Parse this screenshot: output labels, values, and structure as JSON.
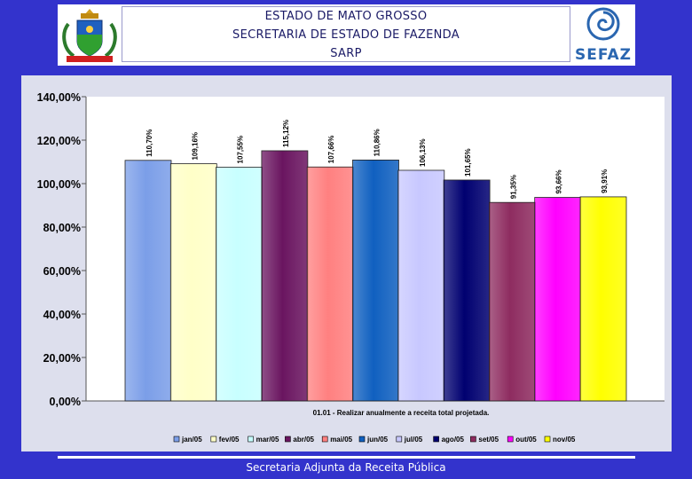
{
  "header": {
    "lines": [
      "ESTADO DE MATO GROSSO",
      "SECRETARIA DE ESTADO DE FAZENDA",
      "SARP"
    ],
    "logo_right_text": "SEFAZ"
  },
  "chart_data": {
    "type": "bar",
    "categories": [
      "jan/05",
      "fev/05",
      "mar/05",
      "abr/05",
      "mai/05",
      "jun/05",
      "jul/05",
      "ago/05",
      "set/05",
      "out/05",
      "nov/05"
    ],
    "values": [
      110.7,
      109.16,
      107.55,
      115.12,
      107.66,
      110.86,
      106.13,
      101.65,
      91.35,
      93.66,
      93.91
    ],
    "data_labels": [
      "110,70%",
      "109,16%",
      "107,55%",
      "115,12%",
      "107,66%",
      "110,86%",
      "106,13%",
      "101,65%",
      "91,35%",
      "93,66%",
      "93,91%"
    ],
    "colors": [
      "#7b9ee8",
      "#ffffc8",
      "#c8ffff",
      "#6a1560",
      "#ff8080",
      "#1060c0",
      "#c8c8ff",
      "#000070",
      "#8e2c60",
      "#ff00ff",
      "#ffff00"
    ],
    "xlabel": "01.01 - Realizar anualmente a receita total projetada.",
    "ylabel": "",
    "ylim": [
      0,
      140
    ],
    "y_ticks": [
      "0,00%",
      "20,00%",
      "40,00%",
      "60,00%",
      "80,00%",
      "100,00%",
      "120,00%",
      "140,00%"
    ],
    "legend_position": "bottom",
    "grid": false
  },
  "footer": {
    "text": "Secretaria Adjunta da Receita Pública"
  }
}
